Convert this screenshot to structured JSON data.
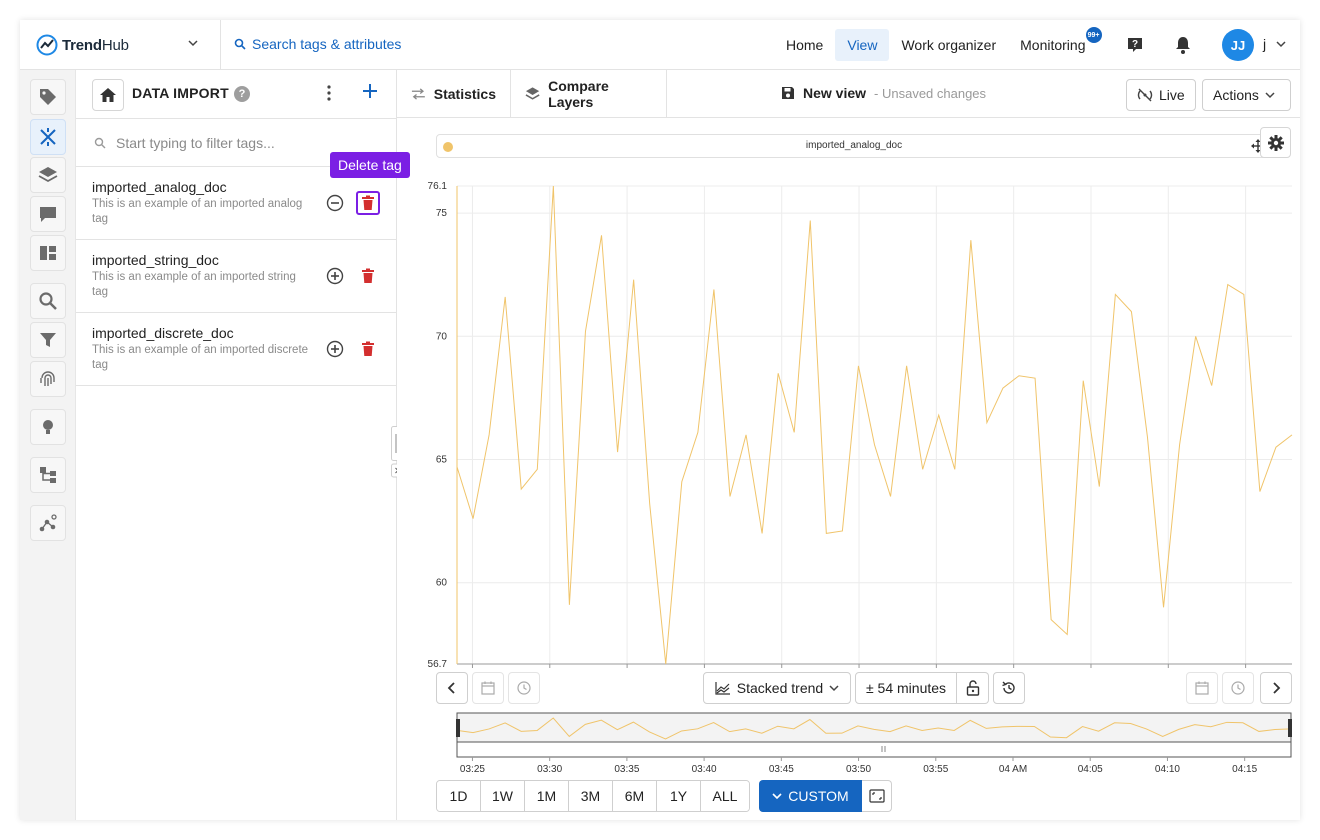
{
  "app": {
    "brand_bold": "Trend",
    "brand_rest": "Hub",
    "search_link": "Search tags & attributes"
  },
  "nav": {
    "items": [
      {
        "label": "Home"
      },
      {
        "label": "View"
      },
      {
        "label": "Work organizer"
      },
      {
        "label": "Monitoring"
      }
    ],
    "monitoring_badge": "99+",
    "active": "View",
    "user_initials": "JJ",
    "user_name": "j"
  },
  "rail": {
    "icons": [
      "tag-icon",
      "tools-icon",
      "layers-icon",
      "chat-icon",
      "dashboard-icon",
      "search-icon",
      "filter-icon",
      "fingerprint-icon",
      "lightbulb-icon",
      "hierarchy-icon",
      "graph-icon"
    ],
    "active": "tools-icon"
  },
  "panel": {
    "title": "DATA IMPORT",
    "help": "?",
    "filter_placeholder": "Start typing to filter tags...",
    "tags": [
      {
        "name": "imported_analog_doc",
        "description": "This is an example of an imported analog tag",
        "state": "added"
      },
      {
        "name": "imported_string_doc",
        "description": "This is an example of an imported string tag",
        "state": "not-added"
      },
      {
        "name": "imported_discrete_doc",
        "description": "This is an example of an imported discrete tag",
        "state": "not-added"
      }
    ],
    "tooltip": "Delete tag"
  },
  "main": {
    "tabs": [
      {
        "label": "Statistics"
      },
      {
        "label": "Compare Layers"
      }
    ],
    "view_name": "New view",
    "view_status": "- Unsaved changes",
    "live_label": "Live",
    "actions_label": "Actions",
    "legend_label": "imported_analog_doc",
    "colors": {
      "series": "#f0c46a",
      "accent": "#1565c0",
      "delete": "#d32f2f",
      "tooltip": "#7b1fe4"
    }
  },
  "controls": {
    "trend_mode": "Stacked trend",
    "window": "± 54 minutes",
    "ranges": [
      "1D",
      "1W",
      "1M",
      "3M",
      "6M",
      "1Y",
      "ALL"
    ],
    "custom_label": "CUSTOM"
  },
  "chart_data": {
    "type": "line",
    "series": [
      {
        "name": "imported_analog_doc",
        "values": [
          64.7,
          62.6,
          66.0,
          71.6,
          63.8,
          64.6,
          76.1,
          59.1,
          70.2,
          74.1,
          65.3,
          72.3,
          63.2,
          56.7,
          64.1,
          66.1,
          71.9,
          63.5,
          66.0,
          62.0,
          68.5,
          66.1,
          74.7,
          62.0,
          62.1,
          68.8,
          65.6,
          63.5,
          68.8,
          64.6,
          66.8,
          64.6,
          73.9,
          66.5,
          67.9,
          68.4,
          68.3,
          58.5,
          57.9,
          68.2,
          63.9,
          71.7,
          71.0,
          65.9,
          59.0,
          65.6,
          70.0,
          68.0,
          72.1,
          71.7,
          63.7,
          65.5,
          66.0
        ]
      }
    ],
    "x_start": "03:24",
    "x_end": "04:18",
    "x_ticks": [
      "03:25",
      "03:30",
      "03:35",
      "03:40",
      "03:45",
      "03:50",
      "03:55",
      "04 AM",
      "04:05",
      "04:10",
      "04:15"
    ],
    "y_ticks": [
      76.1,
      75,
      70,
      65,
      60,
      56.7
    ],
    "ylim": [
      56.7,
      76.1
    ],
    "grid": true,
    "legend": "top"
  }
}
